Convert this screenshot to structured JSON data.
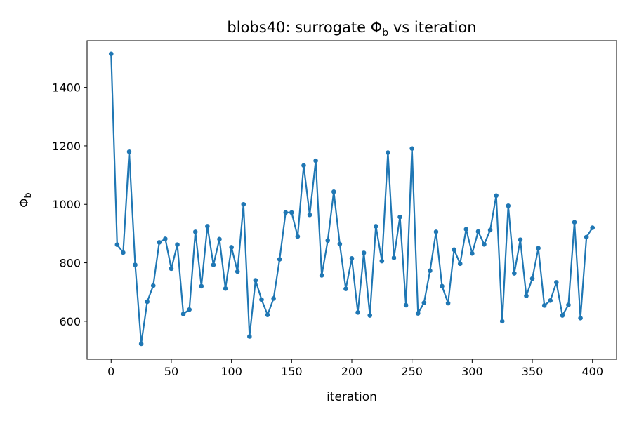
{
  "chart_data": {
    "type": "line",
    "title": "blobs40: surrogate Φ",
    "title_sub": "b",
    "title_suffix": " vs iteration",
    "xlabel": "iteration",
    "ylabel": "Φ",
    "ylabel_sub": "b",
    "xlim": [
      -20,
      420
    ],
    "ylim": [
      470,
      1560
    ],
    "xticks": [
      0,
      50,
      100,
      150,
      200,
      250,
      300,
      350,
      400
    ],
    "yticks": [
      600,
      800,
      1000,
      1200,
      1400
    ],
    "grid": false,
    "line_color": "#1f77b4",
    "series": [
      {
        "x": [
          0,
          5,
          10,
          15,
          20,
          25,
          30,
          35,
          40,
          45,
          50,
          55,
          60,
          65,
          70,
          75,
          80,
          85,
          90,
          95,
          100,
          105,
          110,
          115,
          120,
          125,
          130,
          135,
          140,
          145,
          150,
          155,
          160,
          165,
          170,
          175,
          180,
          185,
          190,
          195,
          200,
          205,
          210,
          215,
          220,
          225,
          230,
          235,
          240,
          245,
          250,
          255,
          260,
          265,
          270,
          275,
          280,
          285,
          290,
          295,
          300,
          305,
          310,
          315,
          320,
          325,
          330,
          335,
          340,
          345,
          350,
          355,
          360,
          365,
          370,
          375,
          380,
          385,
          390,
          395,
          400
        ],
        "values": [
          1515,
          862,
          835,
          1180,
          793,
          523,
          667,
          722,
          870,
          882,
          780,
          862,
          625,
          640,
          906,
          720,
          925,
          793,
          881,
          712,
          853,
          770,
          1000,
          548,
          740,
          674,
          622,
          678,
          812,
          972,
          972,
          890,
          1133,
          964,
          1149,
          757,
          876,
          1043,
          864,
          711,
          815,
          630,
          834,
          620,
          925,
          806,
          1177,
          817,
          957,
          655,
          1191,
          627,
          663,
          773,
          906,
          720,
          662,
          845,
          797,
          915,
          832,
          907,
          863,
          912,
          1030,
          600,
          995,
          764,
          879,
          687,
          746,
          850,
          654,
          671,
          733,
          620,
          656,
          939,
          611,
          888,
          920
        ]
      }
    ]
  }
}
